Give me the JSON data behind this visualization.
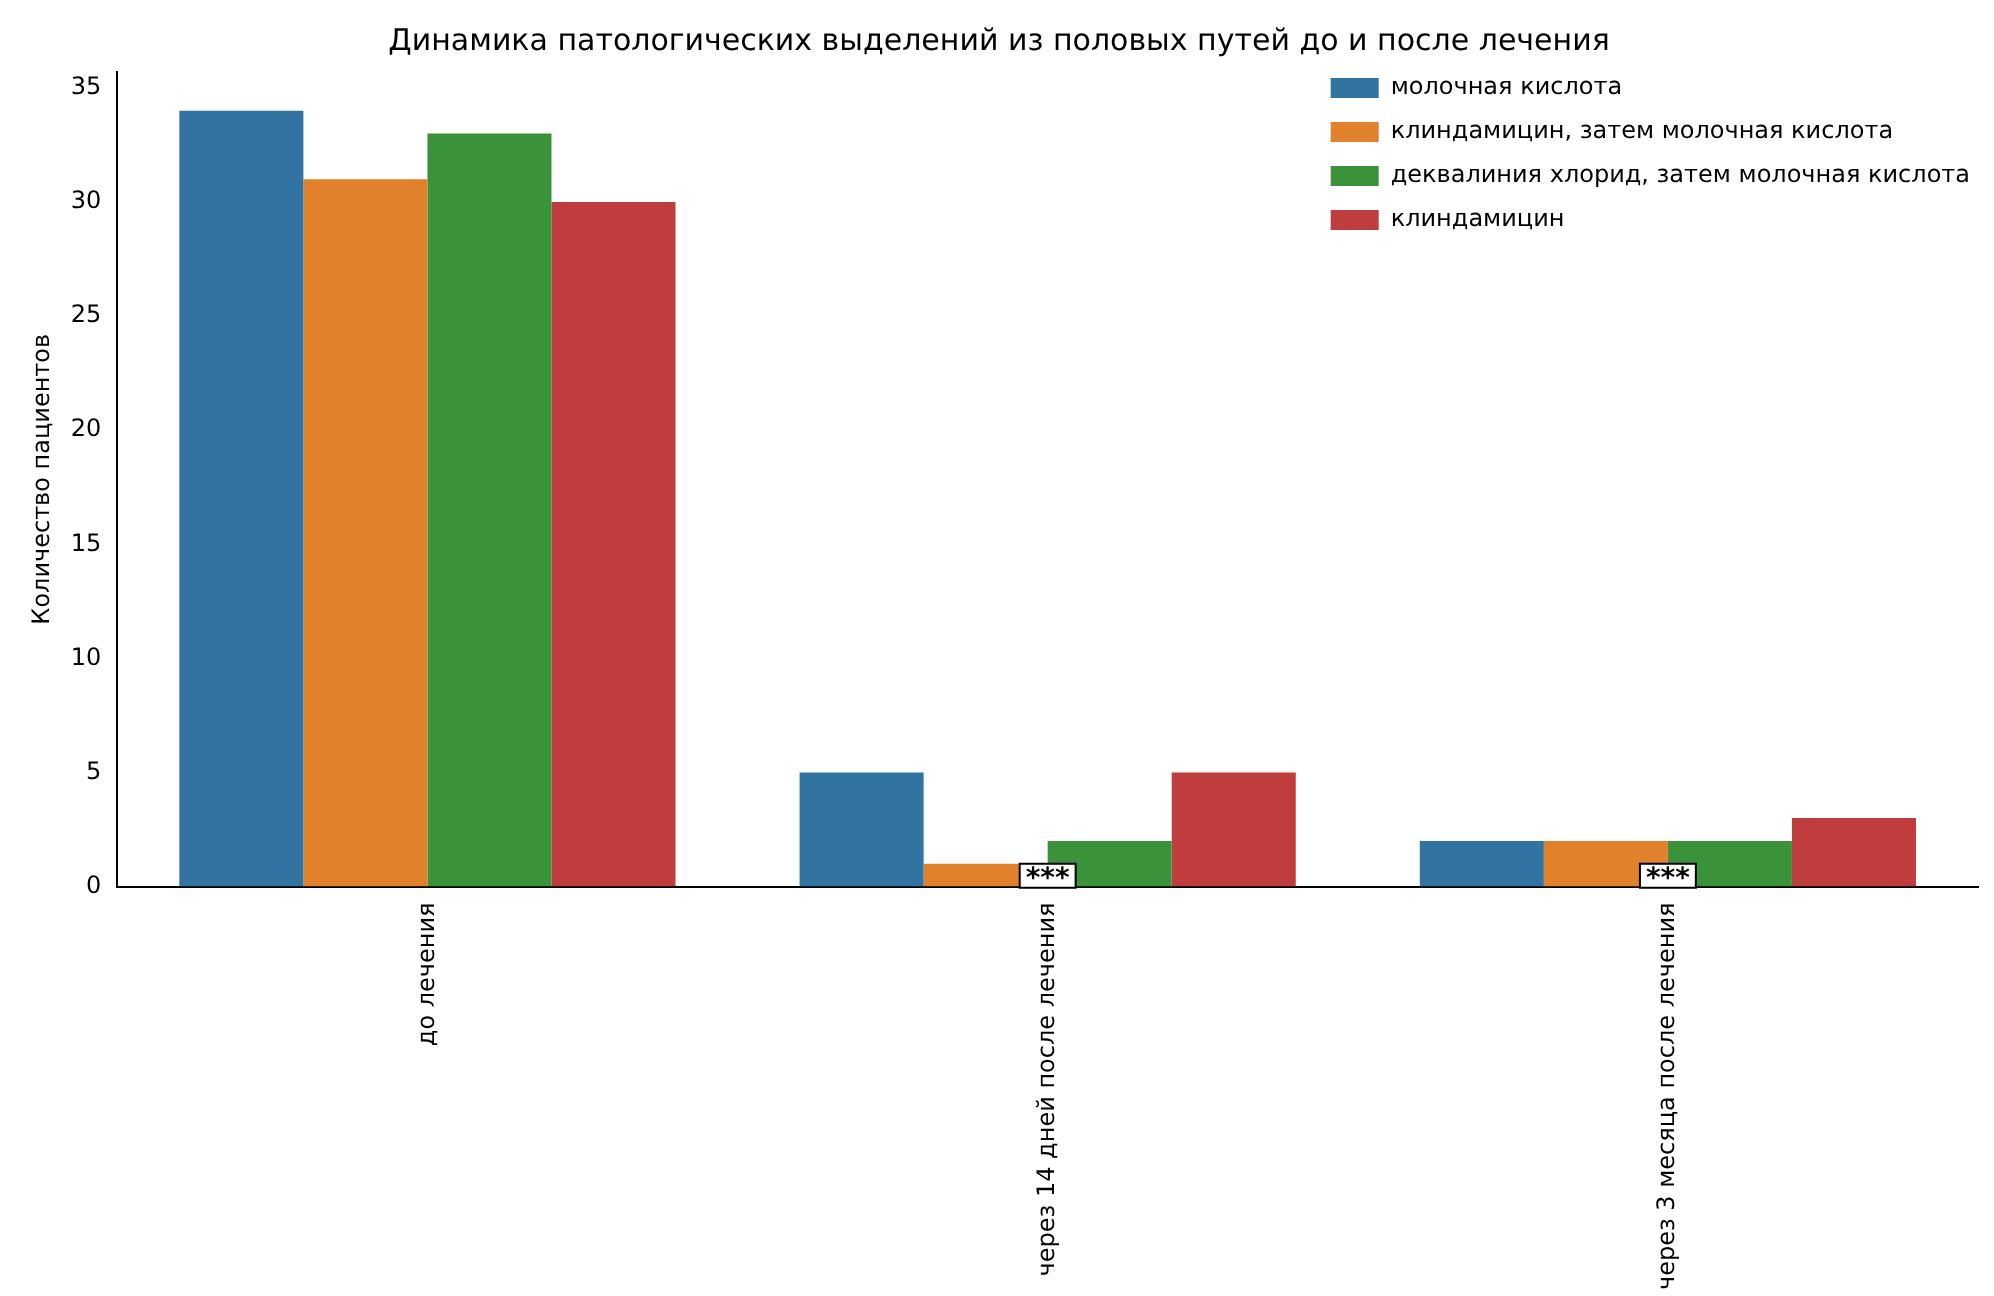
{
  "chart_data": {
    "type": "bar",
    "title": "Динамика патологических выделений из половых путей до и после лечения",
    "ylabel": "Количество пациентов",
    "categories": [
      "до лечения",
      "через 14 дней после лечения",
      "через 3 месяца после лечения"
    ],
    "series": [
      {
        "name": "молочная кислота",
        "color": "#3274a1",
        "values": [
          34,
          5,
          2
        ]
      },
      {
        "name": "клиндамицин, затем молочная кислота",
        "color": "#e1812c",
        "values": [
          31,
          1,
          2
        ]
      },
      {
        "name": "деквалиния хлорид, затем молочная кислота",
        "color": "#3a923a",
        "values": [
          33,
          2,
          2
        ]
      },
      {
        "name": "клиндамицин",
        "color": "#c03d3e",
        "values": [
          30,
          5,
          3
        ]
      }
    ],
    "ylim": [
      0,
      35.7
    ],
    "yticks": [
      0,
      5,
      10,
      15,
      20,
      25,
      30,
      35
    ],
    "grid": false,
    "legend": "top right",
    "annotations": [
      {
        "text": "***",
        "x": "через 14 дней после лечения",
        "y": 1
      },
      {
        "text": "***",
        "x": "через 3 месяца после лечения",
        "y": 1
      }
    ]
  }
}
